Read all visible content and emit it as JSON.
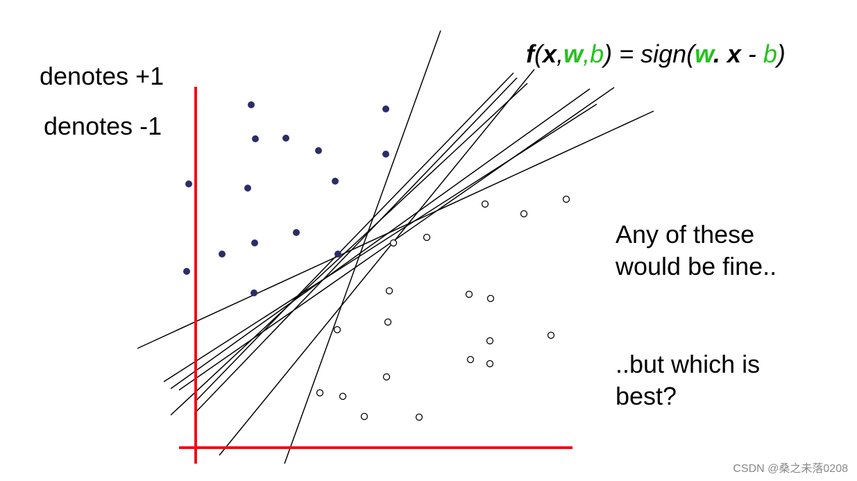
{
  "legend": {
    "positive": "denotes +1",
    "negative": "denotes -1"
  },
  "formula": {
    "parts": [
      "f",
      "(",
      "x",
      ",",
      "w",
      ",",
      "b",
      ") = sign(",
      "w",
      ". ",
      "x",
      " - ",
      "b",
      ")"
    ]
  },
  "notes": {
    "fine": [
      "Any of these",
      "would be fine.."
    ],
    "best": [
      "..but which is",
      "best?"
    ]
  },
  "watermark": "CSDN @桑之未落0208"
}
